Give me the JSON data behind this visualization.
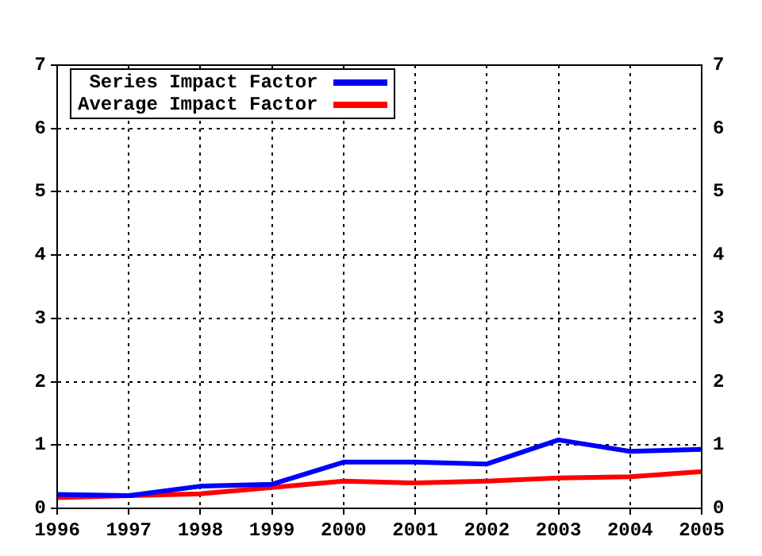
{
  "chart_data": {
    "type": "line",
    "x": [
      1996,
      1997,
      1998,
      1999,
      2000,
      2001,
      2002,
      2003,
      2004,
      2005
    ],
    "series": [
      {
        "name": "Series Impact Factor",
        "color": "#0000ff",
        "values": [
          0.22,
          0.2,
          0.35,
          0.38,
          0.73,
          0.73,
          0.7,
          1.08,
          0.9,
          0.93
        ]
      },
      {
        "name": "Average Impact Factor",
        "color": "#ff0000",
        "values": [
          0.17,
          0.2,
          0.23,
          0.33,
          0.43,
          0.4,
          0.43,
          0.48,
          0.5,
          0.58
        ]
      }
    ],
    "xlim": [
      1996,
      2005
    ],
    "xticks": [
      1996,
      1997,
      1998,
      1999,
      2000,
      2001,
      2002,
      2003,
      2004,
      2005
    ],
    "ylim": [
      0,
      7
    ],
    "yticks": [
      0,
      1,
      2,
      3,
      4,
      5,
      6,
      7
    ],
    "y2lim": [
      0,
      7
    ],
    "y2ticks": [
      0,
      1,
      2,
      3,
      4,
      5,
      6,
      7
    ],
    "grid": true,
    "legend": "top left",
    "marker": "none",
    "line_style": "solid"
  }
}
